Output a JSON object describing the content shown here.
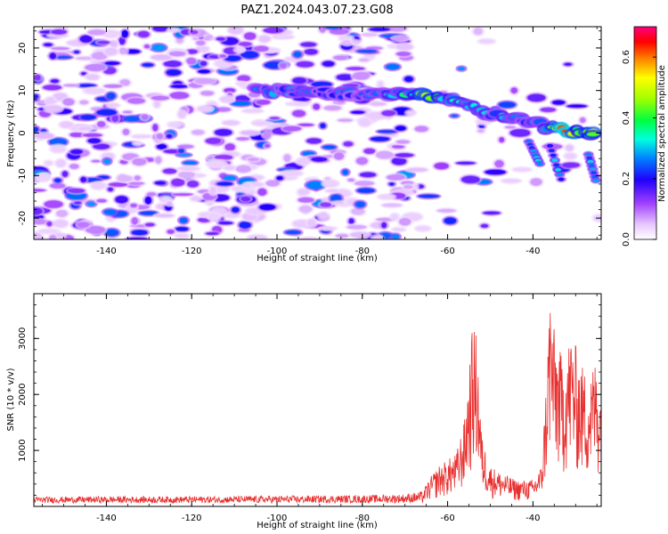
{
  "title": "PAZ1.2024.043.07.23.G08",
  "colorbar": {
    "label": "Normalized spectral amplitude",
    "ticks": [
      "0.0",
      "0.2",
      "0.4",
      "0.6"
    ],
    "tick_values": [
      0.0,
      0.2,
      0.4,
      0.6
    ],
    "range": [
      0.0,
      0.7
    ]
  },
  "chart_data": [
    {
      "type": "heatmap",
      "xlabel": "Height of straight line (km)",
      "ylabel": "Frequency (Hz)",
      "xlim": [
        -157,
        -24
      ],
      "ylim": [
        -25,
        25
      ],
      "xticks": [
        -140,
        -120,
        -100,
        -80,
        -60,
        -40
      ],
      "xtick_labels": [
        "-140",
        "-120",
        "-100",
        "-80",
        "-60",
        "-40"
      ],
      "yticks": [
        -20,
        -10,
        0,
        10,
        20
      ],
      "ytick_labels": [
        "-20",
        "-10",
        "0",
        "10",
        "20"
      ],
      "colormap": "gist_ncar-like (white, violet, blue, cyan, green, yellow, orange, red, magenta)",
      "ridge": [
        {
          "x": -105,
          "y": 10,
          "amp": 0.28
        },
        {
          "x": -100,
          "y": 10,
          "amp": 0.3
        },
        {
          "x": -80,
          "y": 9,
          "amp": 0.25
        },
        {
          "x": -74,
          "y": 9,
          "amp": 0.3
        },
        {
          "x": -68,
          "y": 9,
          "amp": 0.38
        },
        {
          "x": -66,
          "y": 9,
          "amp": 0.55
        },
        {
          "x": -60,
          "y": 8,
          "amp": 0.4
        },
        {
          "x": -56,
          "y": 7,
          "amp": 0.35
        },
        {
          "x": -52,
          "y": 5,
          "amp": 0.3
        },
        {
          "x": -46,
          "y": 4,
          "amp": 0.32
        },
        {
          "x": -42,
          "y": 3,
          "amp": 0.3
        },
        {
          "x": -38,
          "y": 2,
          "amp": 0.28
        },
        {
          "x": -35,
          "y": 1,
          "amp": 0.45
        },
        {
          "x": -32,
          "y": 0.5,
          "amp": 0.7
        },
        {
          "x": -28,
          "y": 0,
          "amp": 0.45
        },
        {
          "x": -25,
          "y": -0.5,
          "amp": 0.6
        }
      ]
    },
    {
      "type": "line",
      "xlabel": "Height of straight line (km)",
      "ylabel": "SNR (10 * v/v)",
      "xlim": [
        -157,
        -24
      ],
      "ylim": [
        0,
        3800
      ],
      "xticks": [
        -140,
        -120,
        -100,
        -80,
        -60,
        -40
      ],
      "xtick_labels": [
        "-140",
        "-120",
        "-100",
        "-80",
        "-60",
        "-40"
      ],
      "yticks": [
        1000,
        2000,
        3000
      ],
      "ytick_labels": [
        "1000",
        "2000",
        "3000"
      ],
      "series": [
        {
          "color": "#e8302f",
          "envelope": [
            [
              -157,
              150
            ],
            [
              -140,
              160
            ],
            [
              -120,
              160
            ],
            [
              -100,
              170
            ],
            [
              -80,
              180
            ],
            [
              -70,
              200
            ],
            [
              -66,
              250
            ],
            [
              -64,
              500
            ],
            [
              -62,
              700
            ],
            [
              -60,
              800
            ],
            [
              -58,
              900
            ],
            [
              -56,
              1500
            ],
            [
              -55,
              2400
            ],
            [
              -54,
              3200
            ],
            [
              -53,
              2800
            ],
            [
              -52,
              1200
            ],
            [
              -50,
              700
            ],
            [
              -48,
              600
            ],
            [
              -44,
              450
            ],
            [
              -40,
              450
            ],
            [
              -38,
              700
            ],
            [
              -37,
              2000
            ],
            [
              -36,
              3800
            ],
            [
              -35,
              3000
            ],
            [
              -33,
              2500
            ],
            [
              -31,
              3000
            ],
            [
              -29,
              2500
            ],
            [
              -27,
              2200
            ],
            [
              -25,
              2600
            ],
            [
              -24,
              2000
            ]
          ]
        }
      ]
    }
  ]
}
